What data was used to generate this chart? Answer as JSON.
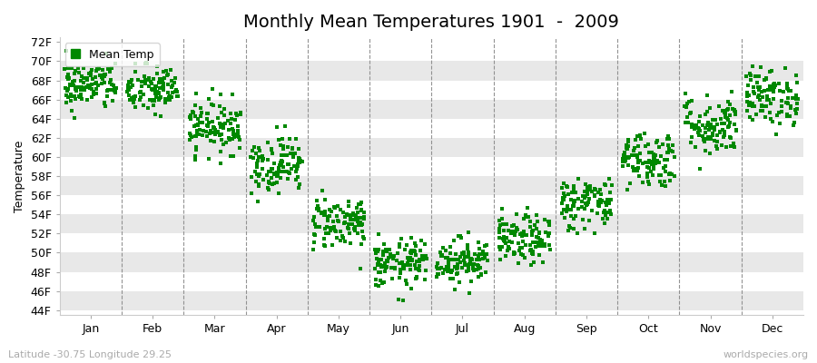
{
  "title": "Monthly Mean Temperatures 1901  -  2009",
  "ylabel": "Temperature",
  "xlabel_bottom_left": "Latitude -30.75 Longitude 29.25",
  "xlabel_bottom_right": "worldspecies.org",
  "yticks": [
    44,
    46,
    48,
    50,
    52,
    54,
    56,
    58,
    60,
    62,
    64,
    66,
    68,
    70,
    72
  ],
  "ytick_labels": [
    "44F",
    "46F",
    "48F",
    "50F",
    "52F",
    "54F",
    "56F",
    "58F",
    "60F",
    "62F",
    "64F",
    "66F",
    "68F",
    "70F",
    "72F"
  ],
  "ylim": [
    43.5,
    72.5
  ],
  "months": [
    "Jan",
    "Feb",
    "Mar",
    "Apr",
    "May",
    "Jun",
    "Jul",
    "Aug",
    "Sep",
    "Oct",
    "Nov",
    "Dec"
  ],
  "n_years": 109,
  "dot_color": "#008800",
  "bg_color": "#ffffff",
  "bg_stripe_color": "#e8e8e8",
  "mean_temps_f": [
    67.5,
    67.0,
    63.2,
    59.3,
    53.2,
    48.8,
    49.2,
    51.3,
    55.2,
    59.8,
    63.3,
    66.3
  ],
  "std_devs": [
    1.3,
    1.3,
    1.4,
    1.5,
    1.4,
    1.3,
    1.2,
    1.3,
    1.4,
    1.5,
    1.6,
    1.5
  ],
  "title_fontsize": 14,
  "axis_fontsize": 9,
  "legend_fontsize": 9
}
